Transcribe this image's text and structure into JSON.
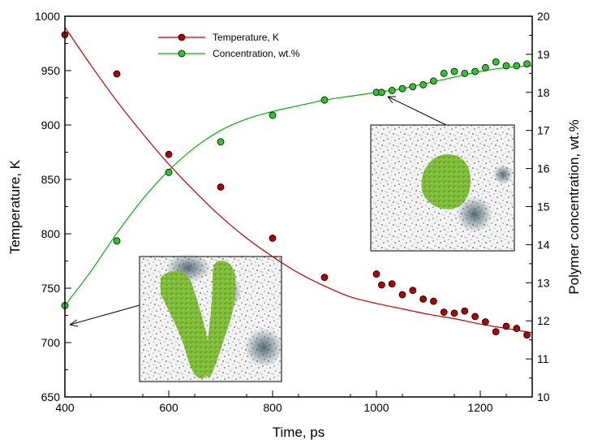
{
  "chart_data": {
    "type": "scatter",
    "xlabel": "Time, ps",
    "ylabel_left": "Temperature, K",
    "ylabel_right": "Polymer concentration, wt.%",
    "xlim": [
      400,
      1300
    ],
    "ylim_left": [
      650,
      1000
    ],
    "ylim_right": [
      10,
      20
    ],
    "x_ticks": [
      400,
      600,
      800,
      1000,
      1200
    ],
    "y_left_ticks": [
      650,
      700,
      750,
      800,
      850,
      900,
      950,
      1000
    ],
    "y_right_ticks": [
      10,
      11,
      12,
      13,
      14,
      15,
      16,
      17,
      18,
      19,
      20
    ],
    "legend_position": "top-center",
    "grid": false,
    "series": [
      {
        "name": "Temperature, K",
        "axis": "left",
        "color": "#c80000",
        "marker_color": "#b40000",
        "x": [
          400,
          500,
          600,
          700,
          800,
          900,
          1000,
          1010,
          1030,
          1050,
          1070,
          1090,
          1110,
          1130,
          1150,
          1170,
          1190,
          1210,
          1230,
          1250,
          1270,
          1290
        ],
        "y": [
          983,
          947,
          873,
          843,
          796,
          760,
          763,
          753,
          754,
          744,
          748,
          740,
          738,
          728,
          727,
          729,
          724,
          719,
          710,
          715,
          713,
          707
        ],
        "fit_x": [
          400,
          450,
          500,
          550,
          600,
          650,
          700,
          750,
          800,
          850,
          900,
          950,
          1000,
          1050,
          1100,
          1150,
          1200,
          1250,
          1300
        ],
        "fit_y": [
          990,
          955,
          922,
          892,
          864,
          839,
          816,
          796,
          779,
          764,
          752,
          742,
          736,
          731,
          726,
          722,
          717,
          713,
          709
        ]
      },
      {
        "name": "Concentration, wt.%",
        "axis": "right",
        "color": "#00b400",
        "marker_color": "#2ac82a",
        "x": [
          400,
          500,
          600,
          700,
          800,
          900,
          1000,
          1010,
          1030,
          1050,
          1070,
          1090,
          1110,
          1130,
          1150,
          1170,
          1190,
          1210,
          1230,
          1250,
          1270,
          1290
        ],
        "y": [
          12.4,
          14.1,
          15.9,
          16.7,
          17.4,
          17.8,
          18.0,
          18.0,
          18.05,
          18.1,
          18.15,
          18.2,
          18.3,
          18.5,
          18.55,
          18.5,
          18.55,
          18.65,
          18.8,
          18.7,
          18.7,
          18.75
        ],
        "fit_x": [
          400,
          450,
          500,
          550,
          600,
          650,
          700,
          750,
          800,
          850,
          900,
          950,
          1000,
          1050,
          1100,
          1150,
          1200,
          1250,
          1300
        ],
        "fit_y": [
          12.4,
          13.3,
          14.3,
          15.2,
          15.95,
          16.55,
          17.0,
          17.3,
          17.5,
          17.65,
          17.8,
          17.9,
          18.0,
          18.1,
          18.25,
          18.4,
          18.55,
          18.65,
          18.7
        ]
      }
    ],
    "insets": [
      {
        "anchor_x": 400,
        "anchor_y": 738,
        "anchor_axis": "left"
      },
      {
        "anchor_x": 1010,
        "anchor_y": 18.0,
        "anchor_axis": "right"
      }
    ]
  }
}
